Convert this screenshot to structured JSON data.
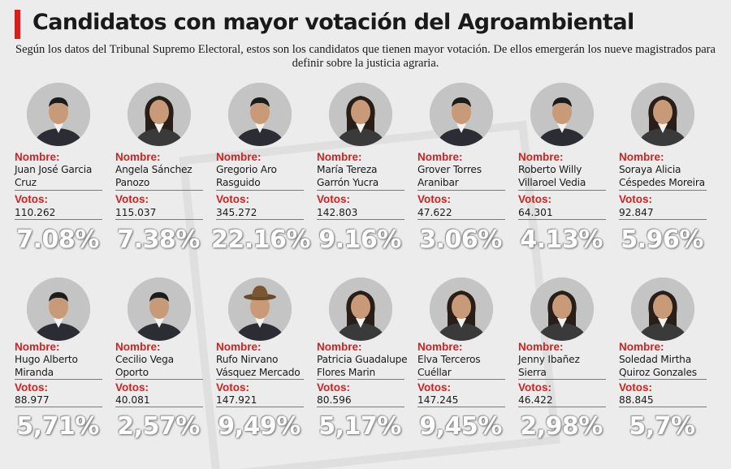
{
  "header": {
    "title": "Candidatos con mayor votación del Agroambiental",
    "subtitle": "Según los datos del Tribunal Supremo Electoral, estos son los candidatos que tienen mayor votación. De ellos emergerán los nueve magistrados para definir sobre la justicia agraria.",
    "accent_color": "#d6201e"
  },
  "labels": {
    "name": "Nombre:",
    "votes": "Votos:"
  },
  "colors": {
    "label": "#d6201e",
    "percent": "#ffffff",
    "avatar_bg": "#bfbfbf"
  },
  "candidates": [
    {
      "name": "Juan José Garcia Cruz",
      "votes": "110.262",
      "percent": "7.08%",
      "avatar": "man-portrait-icon"
    },
    {
      "name": "Angela Sánchez Panozo",
      "votes": "115.037",
      "percent": "7.38%",
      "avatar": "woman-portrait-icon"
    },
    {
      "name": "Gregorio Aro Rasguido",
      "votes": "345.272",
      "percent": "22.16%",
      "avatar": "man-portrait-icon"
    },
    {
      "name": "María Tereza Garrón Yucra",
      "votes": "142.803",
      "percent": "9.16%",
      "avatar": "woman-portrait-icon"
    },
    {
      "name": "Grover Torres Aranibar",
      "votes": "47.622",
      "percent": "3.06%",
      "avatar": "man-portrait-icon"
    },
    {
      "name": "Roberto Willy Villaroel Vedia",
      "votes": "64.301",
      "percent": "4.13%",
      "avatar": "man-portrait-icon"
    },
    {
      "name": "Soraya Alicia Céspedes Moreira",
      "votes": "92.847",
      "percent": "5.96%",
      "avatar": "woman-portrait-icon"
    },
    {
      "name": "Hugo Alberto Miranda",
      "votes": "88.977",
      "percent": "5,71%",
      "avatar": "man-portrait-icon"
    },
    {
      "name": "Cecilio Vega Oporto",
      "votes": "40.081",
      "percent": "2,57%",
      "avatar": "man-portrait-icon"
    },
    {
      "name": "Rufo Nirvano Vásquez Mercado",
      "votes": "147.921",
      "percent": "9,49%",
      "avatar": "man-hat-portrait-icon"
    },
    {
      "name": "Patricia Guadalupe Flores Marin",
      "votes": "80.596",
      "percent": "5,17%",
      "avatar": "woman-portrait-icon"
    },
    {
      "name": "Elva Terceros Cuéllar",
      "votes": "147.245",
      "percent": "9,45%",
      "avatar": "woman-portrait-icon"
    },
    {
      "name": "Jenny Ibañez Sierra",
      "votes": "46.422",
      "percent": "2,98%",
      "avatar": "woman-portrait-icon"
    },
    {
      "name": "Soledad Mirtha Quiroz Gonzales",
      "votes": "88.845",
      "percent": "5,7%",
      "avatar": "woman-portrait-icon"
    }
  ]
}
